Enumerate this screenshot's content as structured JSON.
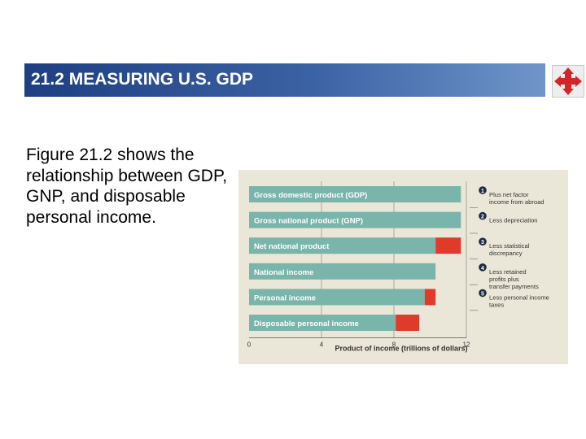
{
  "slide": {
    "title": "21.2 MEASURING U.S. GDP",
    "body": "Figure 21.2 shows the relationship between GDP, GNP, and disposable personal income."
  },
  "icons": {
    "nav": "four-way-arrows-icon"
  },
  "colors": {
    "title_start": "#1e3f82",
    "title_end": "#6f95c9",
    "bar": "#79b5aa",
    "deduction": "#e03b2a",
    "figure_bg": "#eae7d8",
    "badge": "#1f2a44"
  },
  "chart_data": {
    "type": "bar",
    "orientation": "horizontal",
    "stacked": true,
    "categories": [
      "Gross domestic product (GDP)",
      "Gross national product (GNP)",
      "Net national product",
      "National income",
      "Personal income",
      "Disposable personal income"
    ],
    "series": [
      {
        "values": [
          11.7,
          11.7,
          10.3,
          10.3,
          9.7,
          8.1
        ]
      },
      {
        "values": [
          0,
          0,
          1.4,
          0,
          0.6,
          1.3
        ]
      }
    ],
    "xlabel": "Product of income (trillions of dollars)",
    "xticks": [
      0,
      4,
      8,
      12
    ],
    "xlim": [
      0,
      12
    ],
    "grid": true,
    "annotations": [
      {
        "number": "1",
        "text": "Plus net factor income from abroad"
      },
      {
        "number": "2",
        "text": "Less depreciation"
      },
      {
        "number": "3",
        "text": "Less statistical discrepancy"
      },
      {
        "number": "4",
        "text": "Less retained profits plus transfer payments"
      },
      {
        "number": "5",
        "text": "Less personal income taxes"
      }
    ]
  }
}
